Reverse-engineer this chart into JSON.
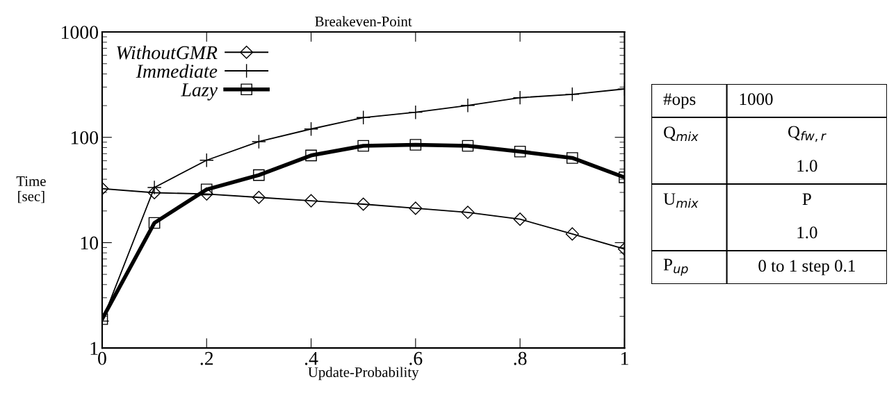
{
  "chart_data": [
    {
      "type": "line",
      "title": "Breakeven-Point",
      "xlabel": "Update-Probability",
      "ylabel": "Time\n[sec]",
      "x": [
        0,
        0.1,
        0.2,
        0.3,
        0.4,
        0.5,
        0.6,
        0.7,
        0.8,
        0.9,
        1
      ],
      "series": [
        {
          "name": "WithoutGMR",
          "color": "#000000",
          "marker": "diamond",
          "values": [
            32.6,
            29.8,
            29,
            26.9,
            25,
            23.2,
            21.2,
            19.4,
            16.7,
            12.1,
            8.7
          ]
        },
        {
          "name": "Immediate",
          "color": "#000000",
          "marker": "cross",
          "values": [
            1.8,
            33.4,
            60.6,
            91,
            120,
            154,
            173,
            201,
            238,
            256,
            288
          ]
        },
        {
          "name": "Lazy",
          "color": "#000000",
          "marker": "square",
          "values": [
            1.88,
            15.4,
            32,
            43.8,
            67.3,
            83,
            85,
            83,
            73.3,
            63.7,
            41.7
          ]
        }
      ],
      "log": "y",
      "xlim": [
        0,
        1
      ],
      "ylim": [
        1,
        1000
      ],
      "xticks": [
        0,
        {
          "value": 0.2,
          "label": ".2"
        },
        {
          "value": 0.4,
          "label": ".4"
        },
        {
          "value": 0.6,
          "label": ".6"
        },
        {
          "value": 0.8,
          "label": ".8"
        },
        1
      ],
      "yticks": [
        1,
        10,
        100,
        1000
      ],
      "grid": false,
      "legend": "top left",
      "line_style": "solid"
    },
    {
      "type": "other",
      "annotations": [
        "#ops",
        "1000",
        "Q$_{mix}$",
        "Q$_{fw,r}$\n1.0",
        "U$_{mix}$",
        "P\n1.0",
        "P$_{up}$",
        "0 to 1 step 0.1"
      ]
    }
  ]
}
